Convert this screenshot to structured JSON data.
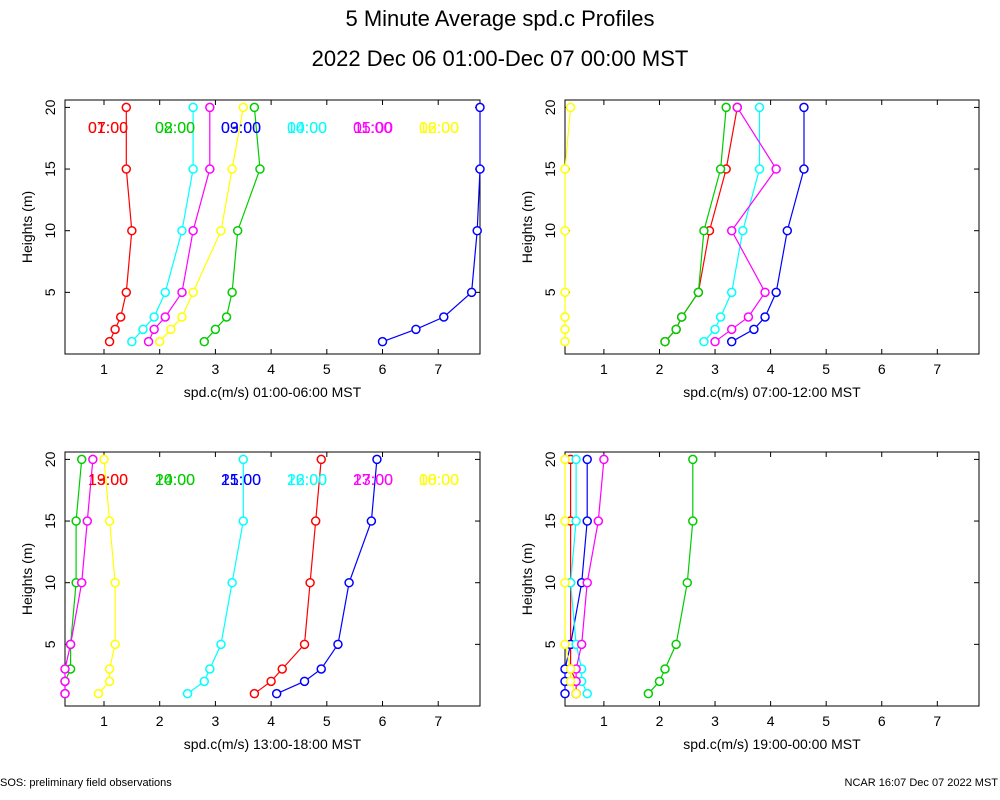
{
  "title": "5 Minute Average spd.c Profiles",
  "subtitle": "2022 Dec 06 01:00-Dec 07 00:00 MST",
  "footer_left": "SOS: preliminary field observations",
  "footer_right": "NCAR 16:07 Dec 07 2022 MST",
  "colors": [
    "#ff0000",
    "#00cc00",
    "#0000ff",
    "#00ffff",
    "#ff00ff",
    "#ffff00"
  ],
  "chart_data": [
    {
      "type": "line",
      "xlabel": "spd.c(m/s) 01:00-06:00 MST",
      "ylabel": "Heights (m)",
      "xlim": [
        0.3,
        7.75
      ],
      "ylim": [
        0,
        20.6
      ],
      "xticks": [
        1,
        2,
        3,
        4,
        5,
        6,
        7
      ],
      "yticks": [
        5,
        10,
        15,
        20
      ],
      "heights": [
        1,
        2,
        3,
        5,
        10,
        15,
        20
      ],
      "series": [
        {
          "name": "01:00",
          "values": [
            1.1,
            1.2,
            1.3,
            1.4,
            1.5,
            1.4,
            1.4
          ]
        },
        {
          "name": "02:00",
          "values": [
            2.8,
            3.0,
            3.2,
            3.3,
            3.4,
            3.8,
            3.7
          ]
        },
        {
          "name": "03:00",
          "values": [
            6.0,
            6.6,
            7.1,
            7.6,
            7.7,
            7.75,
            7.75
          ]
        },
        {
          "name": "04:00",
          "values": [
            1.5,
            1.7,
            1.9,
            2.1,
            2.4,
            2.6,
            2.6
          ]
        },
        {
          "name": "05:00",
          "values": [
            1.8,
            1.9,
            2.1,
            2.4,
            2.6,
            2.9,
            2.9
          ]
        },
        {
          "name": "06:00",
          "values": [
            2.0,
            2.2,
            2.4,
            2.6,
            3.1,
            3.3,
            3.5
          ]
        }
      ]
    },
    {
      "type": "line",
      "xlabel": "spd.c(m/s) 07:00-12:00 MST",
      "ylabel": "Heights (m)",
      "xlim": [
        0.3,
        7.75
      ],
      "ylim": [
        0,
        20.6
      ],
      "xticks": [
        1,
        2,
        3,
        4,
        5,
        6,
        7
      ],
      "yticks": [
        5,
        10,
        15,
        20
      ],
      "heights": [
        1,
        2,
        3,
        5,
        10,
        15,
        20
      ],
      "series": [
        {
          "name": "07:00",
          "values": [
            2.1,
            2.3,
            2.4,
            2.7,
            2.9,
            3.2,
            3.4
          ]
        },
        {
          "name": "08:00",
          "values": [
            2.1,
            2.3,
            2.4,
            2.7,
            2.8,
            3.1,
            3.2
          ]
        },
        {
          "name": "09:00",
          "values": [
            3.3,
            3.7,
            3.9,
            4.1,
            4.3,
            4.6,
            4.6
          ]
        },
        {
          "name": "10:00",
          "values": [
            2.8,
            3.0,
            3.1,
            3.3,
            3.5,
            3.8,
            3.8
          ]
        },
        {
          "name": "11:00",
          "values": [
            3.0,
            3.3,
            3.6,
            3.9,
            3.3,
            4.1,
            3.4
          ]
        },
        {
          "name": "12:00",
          "values": [
            0.3,
            0.3,
            0.3,
            0.3,
            0.3,
            0.3,
            0.4
          ]
        }
      ]
    },
    {
      "type": "line",
      "xlabel": "spd.c(m/s) 13:00-18:00 MST",
      "ylabel": "Heights (m)",
      "xlim": [
        0.3,
        7.75
      ],
      "ylim": [
        0,
        20.6
      ],
      "xticks": [
        1,
        2,
        3,
        4,
        5,
        6,
        7
      ],
      "yticks": [
        5,
        10,
        15,
        20
      ],
      "heights": [
        1,
        2,
        3,
        5,
        10,
        15,
        20
      ],
      "series": [
        {
          "name": "13:00",
          "values": [
            3.7,
            4.0,
            4.2,
            4.6,
            4.7,
            4.8,
            4.9
          ]
        },
        {
          "name": "14:00",
          "values": [
            0.3,
            0.3,
            0.4,
            0.4,
            0.5,
            0.5,
            0.6
          ]
        },
        {
          "name": "15:00",
          "values": [
            4.1,
            4.6,
            4.9,
            5.2,
            5.4,
            5.8,
            5.9
          ]
        },
        {
          "name": "16:00",
          "values": [
            2.5,
            2.8,
            2.9,
            3.1,
            3.3,
            3.5,
            3.5
          ]
        },
        {
          "name": "17:00",
          "values": [
            0.3,
            0.3,
            0.3,
            0.4,
            0.6,
            0.7,
            0.8
          ]
        },
        {
          "name": "18:00",
          "values": [
            0.9,
            1.1,
            1.1,
            1.2,
            1.2,
            1.1,
            1.0
          ]
        }
      ]
    },
    {
      "type": "line",
      "xlabel": "spd.c(m/s) 19:00-00:00 MST",
      "ylabel": "Heights (m)",
      "xlim": [
        0.3,
        7.75
      ],
      "ylim": [
        0,
        20.6
      ],
      "xticks": [
        1,
        2,
        3,
        4,
        5,
        6,
        7
      ],
      "yticks": [
        5,
        10,
        15,
        20
      ],
      "heights": [
        1,
        2,
        3,
        5,
        10,
        15,
        20
      ],
      "series": [
        {
          "name": "19:00",
          "values": [
            0.5,
            0.5,
            0.4,
            0.4,
            0.4,
            0.4,
            0.4
          ]
        },
        {
          "name": "20:00",
          "values": [
            1.8,
            2.0,
            2.1,
            2.3,
            2.5,
            2.6,
            2.6
          ]
        },
        {
          "name": "21:00",
          "values": [
            0.3,
            0.3,
            0.3,
            0.4,
            0.6,
            0.7,
            0.7
          ]
        },
        {
          "name": "22:00",
          "values": [
            0.7,
            0.6,
            0.6,
            0.5,
            0.4,
            0.5,
            0.5
          ]
        },
        {
          "name": "23:00",
          "values": [
            0.5,
            0.5,
            0.5,
            0.6,
            0.7,
            0.9,
            1.0
          ]
        },
        {
          "name": "00:00",
          "values": [
            0.5,
            0.4,
            0.4,
            0.3,
            0.3,
            0.3,
            0.3
          ]
        }
      ]
    }
  ]
}
